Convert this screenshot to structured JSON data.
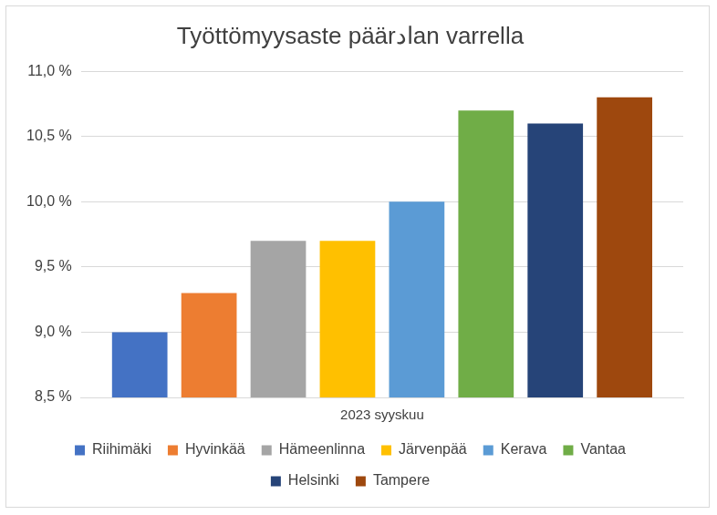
{
  "chart_data": {
    "type": "bar",
    "title": "Työttömyysaste päärادan varrella",
    "categories": [
      "2023 syyskuu"
    ],
    "series": [
      {
        "name": "Riihimäki",
        "color": "#4472c4",
        "values": [
          9.0
        ]
      },
      {
        "name": "Hyvinkää",
        "color": "#ed7d31",
        "values": [
          9.3
        ]
      },
      {
        "name": "Hämeenlinna",
        "color": "#a5a5a5",
        "values": [
          9.7
        ]
      },
      {
        "name": "Järvenpää",
        "color": "#ffc000",
        "values": [
          9.7
        ]
      },
      {
        "name": "Kerava",
        "color": "#5b9bd5",
        "values": [
          10.0
        ]
      },
      {
        "name": "Vantaa",
        "color": "#70ad47",
        "values": [
          10.7
        ]
      },
      {
        "name": "Helsinki",
        "color": "#264478",
        "values": [
          10.6
        ]
      },
      {
        "name": "Tampere",
        "color": "#9e480e",
        "values": [
          10.8
        ]
      }
    ],
    "ylim": [
      8.5,
      11.0
    ],
    "yticks": [
      {
        "value": 8.5,
        "label": "8,5 %"
      },
      {
        "value": 9.0,
        "label": "9,0 %"
      },
      {
        "value": 9.5,
        "label": "9,5 %"
      },
      {
        "value": 10.0,
        "label": "10,0 %"
      },
      {
        "value": 10.5,
        "label": "10,5 %"
      },
      {
        "value": 11.0,
        "label": "11,0 %"
      }
    ],
    "grid": true,
    "legend": "bottom"
  }
}
